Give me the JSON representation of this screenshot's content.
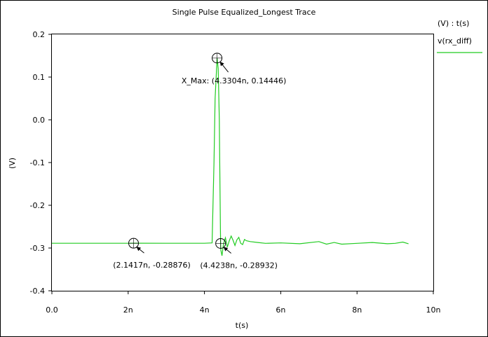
{
  "chart_data": {
    "type": "line",
    "title": "Single Pulse Equalized_Longest Trace",
    "xlabel": "t(s)",
    "ylabel": "(V)",
    "xlim": [
      0,
      10
    ],
    "ylim": [
      -0.4,
      0.2
    ],
    "x_ticks": [
      {
        "value": 0,
        "label": "0.0"
      },
      {
        "value": 2,
        "label": "2n"
      },
      {
        "value": 4,
        "label": "4n"
      },
      {
        "value": 6,
        "label": "6n"
      },
      {
        "value": 8,
        "label": "8n"
      },
      {
        "value": 10,
        "label": "10n"
      }
    ],
    "y_ticks": [
      {
        "value": 0.2,
        "label": "0.2"
      },
      {
        "value": 0.1,
        "label": "0.1"
      },
      {
        "value": 0.0,
        "label": "0.0"
      },
      {
        "value": -0.1,
        "label": "-0.1"
      },
      {
        "value": -0.2,
        "label": "-0.2"
      },
      {
        "value": -0.3,
        "label": "-0.3"
      },
      {
        "value": -0.4,
        "label": "-0.4"
      }
    ],
    "grid": false,
    "legend": {
      "header": "(V) : t(s)",
      "position": "top-right",
      "entries": [
        {
          "name": "v(rx_diff)",
          "color": "#22cc22"
        }
      ]
    },
    "series": [
      {
        "name": "v(rx_diff)",
        "color": "#22cc22",
        "x": [
          0,
          1,
          2,
          2.1417,
          3,
          4.0,
          4.2,
          4.25,
          4.28,
          4.3304,
          4.36,
          4.39,
          4.4,
          4.41,
          4.42,
          4.4238,
          4.43,
          4.46,
          4.5,
          4.55,
          4.6,
          4.65,
          4.7,
          4.75,
          4.8,
          4.85,
          4.9,
          4.95,
          5.0,
          5.05,
          5.1,
          5.2,
          5.4,
          5.6,
          6.0,
          6.5,
          7.0,
          7.2,
          7.4,
          7.6,
          8.0,
          8.4,
          8.8,
          9.0,
          9.2,
          9.35
        ],
        "y": [
          -0.2888,
          -0.2888,
          -0.2888,
          -0.28876,
          -0.2888,
          -0.2888,
          -0.288,
          -0.1,
          0.05,
          0.14446,
          0.12,
          0.0,
          -0.1,
          -0.18,
          -0.26,
          -0.28932,
          -0.305,
          -0.318,
          -0.29,
          -0.276,
          -0.298,
          -0.283,
          -0.272,
          -0.282,
          -0.294,
          -0.281,
          -0.275,
          -0.289,
          -0.292,
          -0.28,
          -0.283,
          -0.285,
          -0.287,
          -0.289,
          -0.288,
          -0.29,
          -0.285,
          -0.291,
          -0.287,
          -0.291,
          -0.289,
          -0.287,
          -0.29,
          -0.289,
          -0.286,
          -0.29
        ]
      }
    ],
    "annotations": [
      {
        "x": 4.3304,
        "y": 0.14446,
        "text": "X_Max: (4.3304n, 0.14446)",
        "placement": "below-left"
      },
      {
        "x": 2.1417,
        "y": -0.28876,
        "text": "(2.1417n, -0.28876)",
        "placement": "below"
      },
      {
        "x": 4.4238,
        "y": -0.28932,
        "text": "(4.4238n, -0.28932)",
        "placement": "below"
      }
    ]
  }
}
